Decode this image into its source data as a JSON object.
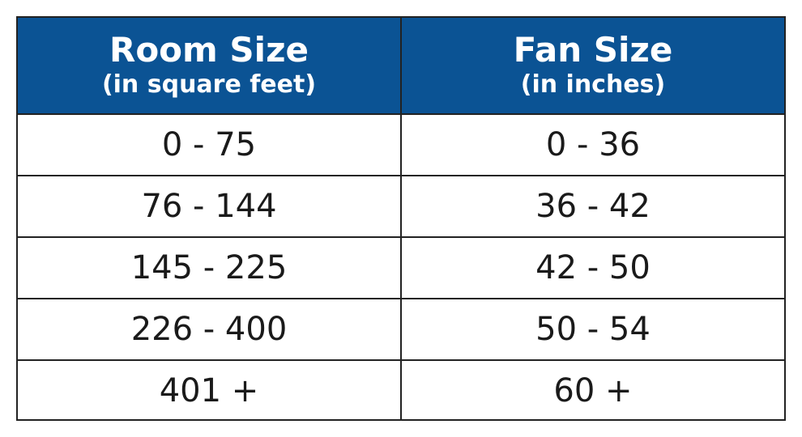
{
  "table": {
    "header": [
      {
        "title": "Room Size",
        "subtitle": "(in square feet)"
      },
      {
        "title": "Fan Size",
        "subtitle": "(in inches)"
      }
    ],
    "rows": [
      [
        "0 - 75",
        "0 - 36"
      ],
      [
        "76 - 144",
        "36 - 42"
      ],
      [
        "145 - 225",
        "42 - 50"
      ],
      [
        "226 - 400",
        "50 - 54"
      ],
      [
        "401 +",
        "60 +"
      ]
    ]
  }
}
